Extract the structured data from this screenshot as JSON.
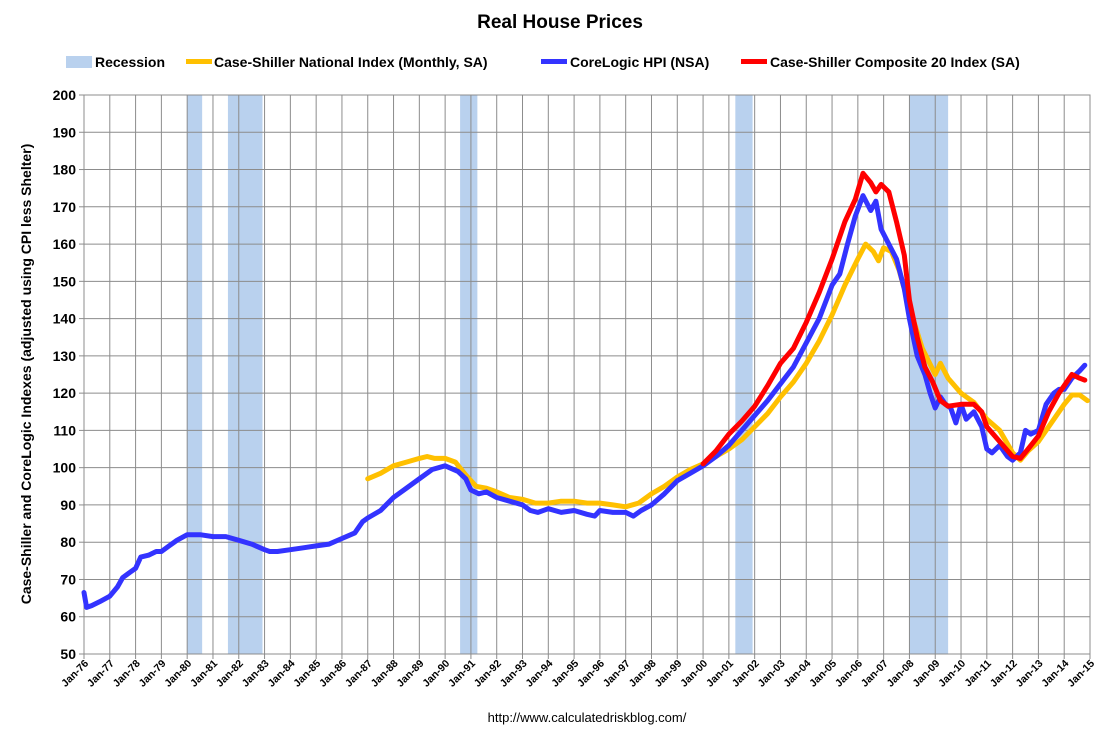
{
  "chart_data": {
    "type": "line",
    "title": "Real House Prices",
    "ylabel": "Case-Shiller and CoreLogic Indexes (adjusted using CPI less Shelter)",
    "xlabel": "",
    "ylim": [
      50,
      200
    ],
    "yticks": [
      50,
      60,
      70,
      80,
      90,
      100,
      110,
      120,
      130,
      140,
      150,
      160,
      170,
      180,
      190,
      200
    ],
    "xlim": [
      1976,
      2015
    ],
    "xtick_labels": [
      "Jan-76",
      "Jan-77",
      "Jan-78",
      "Jan-79",
      "Jan-80",
      "Jan-81",
      "Jan-82",
      "Jan-83",
      "Jan-84",
      "Jan-85",
      "Jan-86",
      "Jan-87",
      "Jan-88",
      "Jan-89",
      "Jan-90",
      "Jan-91",
      "Jan-92",
      "Jan-93",
      "Jan-94",
      "Jan-95",
      "Jan-96",
      "Jan-97",
      "Jan-98",
      "Jan-99",
      "Jan-00",
      "Jan-01",
      "Jan-02",
      "Jan-03",
      "Jan-04",
      "Jan-05",
      "Jan-06",
      "Jan-07",
      "Jan-08",
      "Jan-09",
      "Jan-10",
      "Jan-11",
      "Jan-12",
      "Jan-13",
      "Jan-14",
      "Jan-15"
    ],
    "grid": true,
    "legend_position": "top",
    "source": "http://www.calculatedriskblog.com/",
    "recessions": {
      "name": "Recession",
      "color": "#b9d1ee",
      "periods": [
        [
          1980.0,
          1980.58
        ],
        [
          1981.58,
          1982.92
        ],
        [
          1990.58,
          1991.25
        ],
        [
          2001.25,
          2001.92
        ],
        [
          2008.0,
          2009.5
        ]
      ]
    },
    "series": [
      {
        "name": "Case-Shiller National Index (Monthly, SA)",
        "color": "#ffc000",
        "points": [
          [
            1987.0,
            97
          ],
          [
            1987.5,
            98.5
          ],
          [
            1988.0,
            100.5
          ],
          [
            1988.5,
            101.5
          ],
          [
            1989.0,
            102.5
          ],
          [
            1989.3,
            103
          ],
          [
            1989.6,
            102.5
          ],
          [
            1990.0,
            102.5
          ],
          [
            1990.4,
            101.5
          ],
          [
            1990.8,
            98
          ],
          [
            1991.2,
            95
          ],
          [
            1991.6,
            94.5
          ],
          [
            1992.0,
            93.5
          ],
          [
            1992.5,
            92
          ],
          [
            1993.0,
            91.5
          ],
          [
            1993.5,
            90.5
          ],
          [
            1994.0,
            90.5
          ],
          [
            1994.5,
            91
          ],
          [
            1995.0,
            91
          ],
          [
            1995.5,
            90.5
          ],
          [
            1996.0,
            90.5
          ],
          [
            1996.5,
            90
          ],
          [
            1997.0,
            89.5
          ],
          [
            1997.5,
            90.5
          ],
          [
            1998.0,
            93
          ],
          [
            1998.5,
            95
          ],
          [
            1999.0,
            97.5
          ],
          [
            1999.5,
            99.5
          ],
          [
            2000.0,
            101
          ],
          [
            2000.5,
            103
          ],
          [
            2001.0,
            105
          ],
          [
            2001.5,
            107.5
          ],
          [
            2002.0,
            111
          ],
          [
            2002.5,
            114.5
          ],
          [
            2003.0,
            119
          ],
          [
            2003.5,
            123
          ],
          [
            2004.0,
            128
          ],
          [
            2004.5,
            134
          ],
          [
            2005.0,
            141
          ],
          [
            2005.5,
            149
          ],
          [
            2006.0,
            156
          ],
          [
            2006.3,
            160
          ],
          [
            2006.6,
            158
          ],
          [
            2006.8,
            155.5
          ],
          [
            2007.0,
            159
          ],
          [
            2007.3,
            158
          ],
          [
            2007.6,
            153
          ],
          [
            2008.0,
            143
          ],
          [
            2008.5,
            132
          ],
          [
            2009.0,
            125
          ],
          [
            2009.2,
            128
          ],
          [
            2009.5,
            124
          ],
          [
            2010.0,
            120
          ],
          [
            2010.5,
            117.5
          ],
          [
            2011.0,
            113
          ],
          [
            2011.5,
            110
          ],
          [
            2012.0,
            104
          ],
          [
            2012.3,
            102
          ],
          [
            2012.6,
            104.5
          ],
          [
            2013.0,
            107
          ],
          [
            2013.5,
            112
          ],
          [
            2014.0,
            117
          ],
          [
            2014.3,
            119.5
          ],
          [
            2014.6,
            119.5
          ],
          [
            2014.9,
            118
          ]
        ]
      },
      {
        "name": "CoreLogic HPI (NSA)",
        "color": "#3333ff",
        "points": [
          [
            1976.0,
            66.5
          ],
          [
            1976.1,
            62.5
          ],
          [
            1976.3,
            63
          ],
          [
            1976.6,
            64
          ],
          [
            1977.0,
            65.5
          ],
          [
            1977.3,
            68
          ],
          [
            1977.5,
            70.5
          ],
          [
            1977.8,
            72
          ],
          [
            1978.0,
            73
          ],
          [
            1978.2,
            76
          ],
          [
            1978.5,
            76.5
          ],
          [
            1978.8,
            77.5
          ],
          [
            1979.0,
            77.5
          ],
          [
            1979.3,
            79
          ],
          [
            1979.6,
            80.5
          ],
          [
            1980.0,
            82
          ],
          [
            1980.5,
            82
          ],
          [
            1981.0,
            81.5
          ],
          [
            1981.5,
            81.5
          ],
          [
            1982.0,
            80.5
          ],
          [
            1982.5,
            79.5
          ],
          [
            1983.0,
            78
          ],
          [
            1983.2,
            77.5
          ],
          [
            1983.5,
            77.5
          ],
          [
            1984.0,
            78
          ],
          [
            1984.5,
            78.5
          ],
          [
            1985.0,
            79
          ],
          [
            1985.5,
            79.5
          ],
          [
            1986.0,
            81
          ],
          [
            1986.5,
            82.5
          ],
          [
            1986.8,
            85.5
          ],
          [
            1987.0,
            86.5
          ],
          [
            1987.5,
            88.5
          ],
          [
            1988.0,
            92
          ],
          [
            1988.5,
            94.5
          ],
          [
            1989.0,
            97
          ],
          [
            1989.5,
            99.5
          ],
          [
            1990.0,
            100.5
          ],
          [
            1990.5,
            99
          ],
          [
            1990.8,
            97
          ],
          [
            1991.0,
            94
          ],
          [
            1991.3,
            93
          ],
          [
            1991.6,
            93.5
          ],
          [
            1992.0,
            92
          ],
          [
            1992.5,
            91
          ],
          [
            1993.0,
            90
          ],
          [
            1993.3,
            88.5
          ],
          [
            1993.6,
            88
          ],
          [
            1994.0,
            89
          ],
          [
            1994.5,
            88
          ],
          [
            1995.0,
            88.5
          ],
          [
            1995.5,
            87.5
          ],
          [
            1995.8,
            87
          ],
          [
            1996.0,
            88.5
          ],
          [
            1996.5,
            88
          ],
          [
            1997.0,
            88
          ],
          [
            1997.3,
            87
          ],
          [
            1997.6,
            88.5
          ],
          [
            1998.0,
            90
          ],
          [
            1998.5,
            93
          ],
          [
            1999.0,
            96.5
          ],
          [
            1999.5,
            98.5
          ],
          [
            2000.0,
            100.5
          ],
          [
            2000.5,
            103
          ],
          [
            2001.0,
            106
          ],
          [
            2001.5,
            110
          ],
          [
            2002.0,
            114
          ],
          [
            2002.5,
            118
          ],
          [
            2003.0,
            122.5
          ],
          [
            2003.5,
            127
          ],
          [
            2004.0,
            133.5
          ],
          [
            2004.5,
            140
          ],
          [
            2005.0,
            149
          ],
          [
            2005.3,
            152
          ],
          [
            2005.6,
            160
          ],
          [
            2005.9,
            167.5
          ],
          [
            2006.2,
            173
          ],
          [
            2006.5,
            169
          ],
          [
            2006.7,
            171.5
          ],
          [
            2006.9,
            164
          ],
          [
            2007.2,
            160
          ],
          [
            2007.5,
            156
          ],
          [
            2007.8,
            148
          ],
          [
            2008.0,
            140
          ],
          [
            2008.3,
            130
          ],
          [
            2008.6,
            125
          ],
          [
            2008.8,
            120
          ],
          [
            2009.0,
            116
          ],
          [
            2009.2,
            119
          ],
          [
            2009.4,
            117
          ],
          [
            2009.6,
            116
          ],
          [
            2009.8,
            112
          ],
          [
            2010.0,
            117
          ],
          [
            2010.2,
            113
          ],
          [
            2010.5,
            115
          ],
          [
            2010.8,
            111
          ],
          [
            2011.0,
            105
          ],
          [
            2011.2,
            104
          ],
          [
            2011.5,
            106
          ],
          [
            2011.8,
            103
          ],
          [
            2012.0,
            102
          ],
          [
            2012.3,
            104
          ],
          [
            2012.5,
            110
          ],
          [
            2012.7,
            109
          ],
          [
            2013.0,
            110
          ],
          [
            2013.3,
            117
          ],
          [
            2013.6,
            120
          ],
          [
            2013.8,
            121
          ],
          [
            2014.0,
            121
          ],
          [
            2014.3,
            124
          ],
          [
            2014.6,
            126
          ],
          [
            2014.8,
            127.5
          ]
        ]
      },
      {
        "name": "Case-Shiller Composite 20 Index (SA)",
        "color": "#ff0000",
        "points": [
          [
            2000.0,
            101
          ],
          [
            2000.5,
            104.5
          ],
          [
            2001.0,
            109
          ],
          [
            2001.5,
            112.5
          ],
          [
            2002.0,
            116.5
          ],
          [
            2002.5,
            122
          ],
          [
            2003.0,
            128
          ],
          [
            2003.5,
            132
          ],
          [
            2004.0,
            139
          ],
          [
            2004.5,
            147
          ],
          [
            2005.0,
            156
          ],
          [
            2005.5,
            166
          ],
          [
            2005.9,
            172
          ],
          [
            2006.2,
            179
          ],
          [
            2006.5,
            176.5
          ],
          [
            2006.7,
            174
          ],
          [
            2006.9,
            176
          ],
          [
            2007.2,
            174
          ],
          [
            2007.5,
            166
          ],
          [
            2007.8,
            157
          ],
          [
            2008.0,
            145
          ],
          [
            2008.3,
            135
          ],
          [
            2008.6,
            127
          ],
          [
            2008.9,
            123
          ],
          [
            2009.2,
            118
          ],
          [
            2009.5,
            116.5
          ],
          [
            2010.0,
            117
          ],
          [
            2010.5,
            117
          ],
          [
            2010.8,
            115
          ],
          [
            2011.0,
            111
          ],
          [
            2011.5,
            107
          ],
          [
            2012.0,
            103
          ],
          [
            2012.3,
            102.5
          ],
          [
            2012.6,
            105
          ],
          [
            2013.0,
            108.5
          ],
          [
            2013.4,
            115
          ],
          [
            2013.8,
            120
          ],
          [
            2014.0,
            122
          ],
          [
            2014.3,
            125
          ],
          [
            2014.6,
            124
          ],
          [
            2014.8,
            123.5
          ]
        ]
      }
    ]
  }
}
